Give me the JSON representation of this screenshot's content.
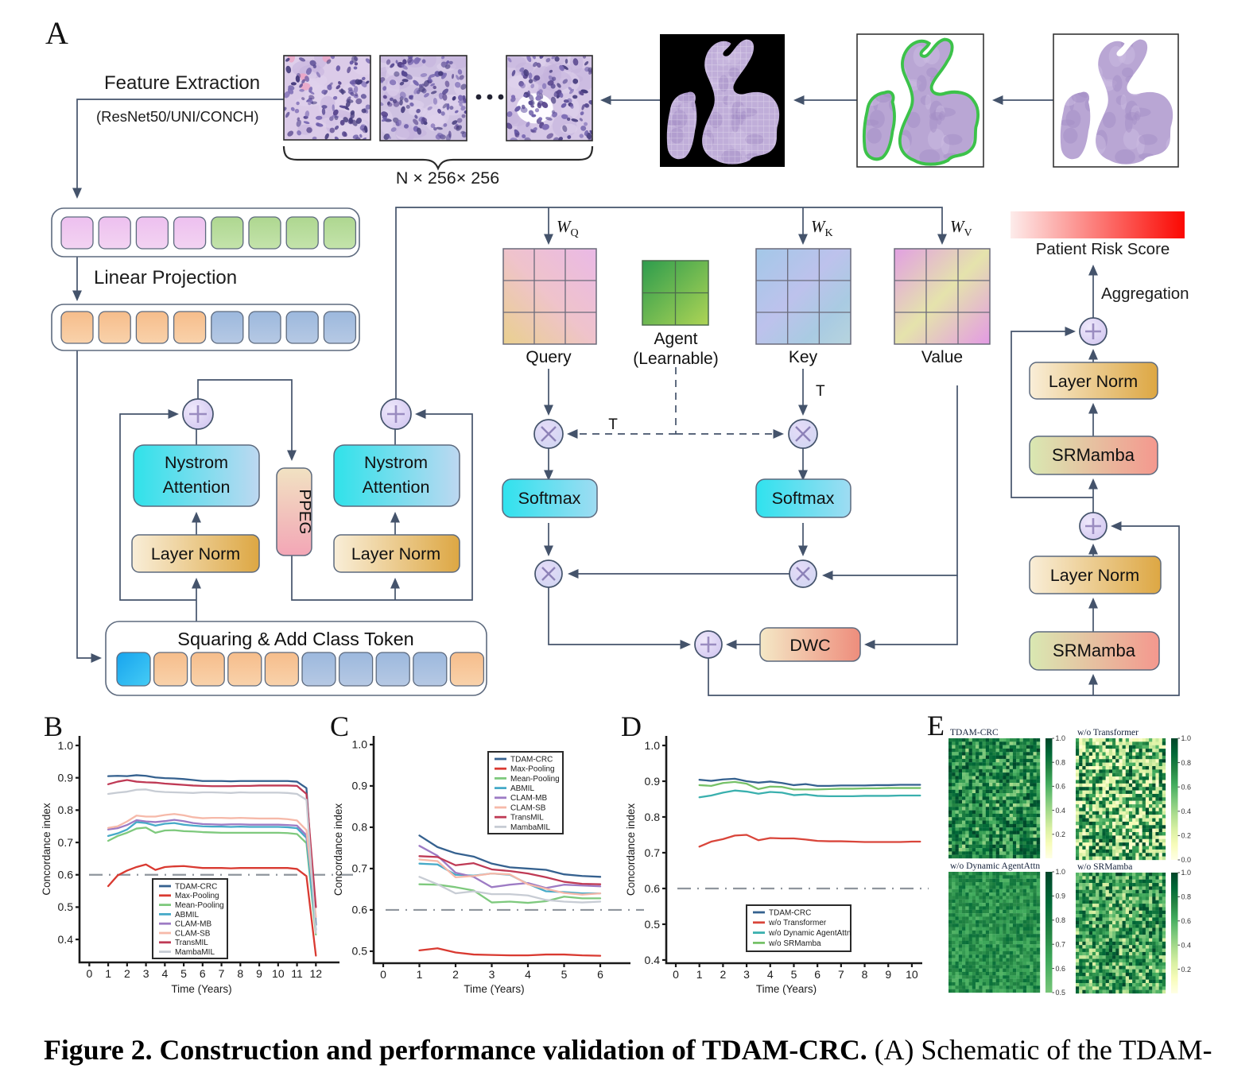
{
  "panel_labels": {
    "a": "A",
    "b": "B",
    "c": "C",
    "d": "D",
    "e": "E"
  },
  "panel_a": {
    "feature_extraction": "Feature Extraction",
    "backbones": "(ResNet50/UNI/CONCH)",
    "patch_count": "N × 256× 256",
    "linear_projection": "Linear Projection",
    "squaring_title": "Squaring & Add Class Token",
    "nystrom_line1": "Nystrom",
    "nystrom_line2": "Attention",
    "layer_norm": "Layer Norm",
    "ppeg": "PPEG",
    "wq": {
      "base": "W",
      "sub": "Q"
    },
    "wk": {
      "base": "W",
      "sub": "K"
    },
    "wv": {
      "base": "W",
      "sub": "V"
    },
    "query": "Query",
    "agent_line1": "Agent",
    "agent_line2": "(Learnable)",
    "key": "Key",
    "value": "Value",
    "softmax": "Softmax",
    "t_left": "T",
    "t_right": "T",
    "dwc": "DWC",
    "srmamba": "SRMamba",
    "aggregation": "Aggregation",
    "patient_risk_score": "Patient Risk Score"
  },
  "chart_data": [
    {
      "id": "B",
      "type": "line",
      "title": "",
      "xlabel": "Time (Years)",
      "ylabel": "Concordance index",
      "xticks": [
        0,
        1,
        2,
        3,
        4,
        5,
        6,
        7,
        8,
        9,
        10,
        11,
        12
      ],
      "yticks": [
        0.4,
        0.5,
        0.6,
        0.7,
        0.8,
        0.9,
        1.0
      ],
      "xlim": [
        -0.52,
        13.25
      ],
      "ylim": [
        0.329,
        1.0295
      ],
      "dashed_y": 0.6,
      "grid": false,
      "legend_position": "lower-center",
      "x": [
        1,
        1.5,
        2,
        2.5,
        3,
        3.5,
        4,
        4.5,
        5,
        5.5,
        6,
        6.5,
        7,
        7.5,
        8,
        8.5,
        9,
        9.5,
        10,
        10.5,
        11,
        11.5,
        12
      ],
      "series": [
        {
          "name": "TDAM-CRC",
          "color": "#35618f",
          "values": [
            0.905,
            0.906,
            0.905,
            0.908,
            0.906,
            0.901,
            0.899,
            0.898,
            0.896,
            0.893,
            0.89,
            0.89,
            0.89,
            0.889,
            0.89,
            0.89,
            0.89,
            0.89,
            0.89,
            0.89,
            0.888,
            0.868,
            0.445
          ]
        },
        {
          "name": "Max-Pooling",
          "color": "#d93a31",
          "values": [
            0.565,
            0.598,
            0.613,
            0.624,
            0.632,
            0.615,
            0.624,
            0.626,
            0.627,
            0.624,
            0.621,
            0.621,
            0.621,
            0.62,
            0.621,
            0.621,
            0.621,
            0.621,
            0.621,
            0.621,
            0.618,
            0.596,
            0.35
          ]
        },
        {
          "name": "Mean-Pooling",
          "color": "#7ec97d",
          "values": [
            0.705,
            0.72,
            0.73,
            0.743,
            0.746,
            0.73,
            0.737,
            0.738,
            0.735,
            0.734,
            0.732,
            0.731,
            0.73,
            0.73,
            0.73,
            0.73,
            0.73,
            0.73,
            0.73,
            0.729,
            0.726,
            0.698,
            0.415
          ]
        },
        {
          "name": "ABMIL",
          "color": "#46aac8",
          "values": [
            0.72,
            0.728,
            0.74,
            0.763,
            0.76,
            0.752,
            0.758,
            0.76,
            0.755,
            0.752,
            0.75,
            0.749,
            0.749,
            0.748,
            0.749,
            0.748,
            0.748,
            0.748,
            0.748,
            0.747,
            0.744,
            0.714,
            0.43
          ]
        },
        {
          "name": "CLAM-MB",
          "color": "#9d7bc4",
          "values": [
            0.74,
            0.744,
            0.754,
            0.769,
            0.765,
            0.763,
            0.766,
            0.77,
            0.766,
            0.76,
            0.757,
            0.756,
            0.755,
            0.756,
            0.756,
            0.755,
            0.755,
            0.755,
            0.755,
            0.754,
            0.752,
            0.722,
            0.5
          ]
        },
        {
          "name": "CLAM-SB",
          "color": "#f6b9a9",
          "values": [
            0.745,
            0.75,
            0.765,
            0.783,
            0.78,
            0.78,
            0.785,
            0.788,
            0.784,
            0.778,
            0.775,
            0.776,
            0.776,
            0.775,
            0.776,
            0.775,
            0.774,
            0.774,
            0.774,
            0.772,
            0.768,
            0.738,
            0.47
          ]
        },
        {
          "name": "TransMIL",
          "color": "#bf3a55",
          "values": [
            0.88,
            0.888,
            0.893,
            0.888,
            0.886,
            0.885,
            0.882,
            0.88,
            0.878,
            0.876,
            0.875,
            0.874,
            0.874,
            0.874,
            0.875,
            0.875,
            0.876,
            0.876,
            0.876,
            0.876,
            0.875,
            0.85,
            0.5
          ]
        },
        {
          "name": "MambaMIL",
          "color": "#c7ccd4",
          "values": [
            0.85,
            0.854,
            0.857,
            0.863,
            0.864,
            0.858,
            0.856,
            0.855,
            0.854,
            0.853,
            0.855,
            0.855,
            0.854,
            0.853,
            0.855,
            0.854,
            0.854,
            0.854,
            0.854,
            0.853,
            0.85,
            0.832,
            0.42
          ]
        }
      ]
    },
    {
      "id": "C",
      "type": "line",
      "title": "",
      "xlabel": "Time (Years)",
      "ylabel": "Concordance index",
      "xticks": [
        0,
        1,
        2,
        3,
        4,
        5,
        6
      ],
      "yticks": [
        0.5,
        0.6,
        0.7,
        0.8,
        0.9,
        1.0
      ],
      "xlim": [
        -0.264,
        6.835
      ],
      "ylim": [
        0.471,
        1.021
      ],
      "dashed_y": 0.6,
      "grid": false,
      "legend_position": "upper-right",
      "x": [
        1,
        1.5,
        2,
        2.5,
        3,
        3.5,
        4,
        4.5,
        5,
        5.5,
        6
      ],
      "series": [
        {
          "name": "TDAM-CRC",
          "color": "#35618f",
          "values": [
            0.78,
            0.752,
            0.737,
            0.729,
            0.712,
            0.703,
            0.7,
            0.697,
            0.686,
            0.682,
            0.68
          ]
        },
        {
          "name": "Max-Pooling",
          "color": "#d93a31",
          "values": [
            0.502,
            0.507,
            0.497,
            0.492,
            0.491,
            0.49,
            0.49,
            0.492,
            0.492,
            0.49,
            0.489
          ]
        },
        {
          "name": "Mean-Pooling",
          "color": "#7ec97d",
          "values": [
            0.662,
            0.661,
            0.655,
            0.647,
            0.618,
            0.62,
            0.617,
            0.621,
            0.632,
            0.628,
            0.628
          ]
        },
        {
          "name": "ABMIL",
          "color": "#46aac8",
          "values": [
            0.712,
            0.71,
            0.685,
            0.683,
            0.688,
            0.685,
            0.663,
            0.645,
            0.643,
            0.64,
            0.64
          ]
        },
        {
          "name": "CLAM-MB",
          "color": "#9d7bc4",
          "values": [
            0.755,
            0.731,
            0.69,
            0.68,
            0.655,
            0.661,
            0.665,
            0.653,
            0.661,
            0.659,
            0.657
          ]
        },
        {
          "name": "CLAM-SB",
          "color": "#f6b9a9",
          "values": [
            0.722,
            0.718,
            0.679,
            0.682,
            0.688,
            0.686,
            0.662,
            0.651,
            0.641,
            0.637,
            0.64
          ]
        },
        {
          "name": "TransMIL",
          "color": "#bf3a55",
          "values": [
            0.73,
            0.728,
            0.708,
            0.713,
            0.698,
            0.694,
            0.688,
            0.679,
            0.668,
            0.663,
            0.662
          ]
        },
        {
          "name": "MambaMIL",
          "color": "#c7ccd4",
          "values": [
            0.68,
            0.662,
            0.64,
            0.645,
            0.638,
            0.638,
            0.635,
            0.624,
            0.62,
            0.618,
            0.62
          ]
        }
      ]
    },
    {
      "id": "D",
      "type": "line",
      "title": "",
      "xlabel": "Time (Years)",
      "ylabel": "Concordance index",
      "xticks": [
        0,
        1,
        2,
        3,
        4,
        5,
        6,
        7,
        8,
        9,
        10
      ],
      "yticks": [
        0.4,
        0.5,
        0.6,
        0.7,
        0.8,
        0.9,
        1.0
      ],
      "xlim": [
        -0.404,
        10.44
      ],
      "ylim": [
        0.391,
        1.0267
      ],
      "dashed_y": 0.6,
      "grid": false,
      "legend_position": "lower-center",
      "x": [
        1,
        1.5,
        2,
        2.5,
        3,
        3.5,
        4,
        4.5,
        5,
        5.5,
        6,
        6.5,
        7,
        7.5,
        8,
        8.5,
        9,
        9.5,
        10,
        10.35
      ],
      "series": [
        {
          "name": "TDAM-CRC",
          "color": "#35618f",
          "values": [
            0.904,
            0.901,
            0.905,
            0.907,
            0.9,
            0.896,
            0.899,
            0.895,
            0.889,
            0.892,
            0.887,
            0.887,
            0.888,
            0.888,
            0.888,
            0.889,
            0.889,
            0.89,
            0.89,
            0.89
          ]
        },
        {
          "name": "w/o Transformer",
          "color": "#d9453a",
          "values": [
            0.717,
            0.731,
            0.738,
            0.748,
            0.75,
            0.735,
            0.741,
            0.74,
            0.74,
            0.737,
            0.733,
            0.732,
            0.732,
            0.731,
            0.73,
            0.73,
            0.73,
            0.73,
            0.731,
            0.731
          ]
        },
        {
          "name": "w/o Dynamic AgentAttn",
          "color": "#3ab0ae",
          "values": [
            0.855,
            0.86,
            0.868,
            0.874,
            0.871,
            0.865,
            0.87,
            0.868,
            0.861,
            0.863,
            0.859,
            0.858,
            0.858,
            0.858,
            0.859,
            0.859,
            0.859,
            0.86,
            0.86,
            0.86
          ]
        },
        {
          "name": "w/o SRMamba",
          "color": "#76c168",
          "values": [
            0.889,
            0.887,
            0.895,
            0.898,
            0.893,
            0.878,
            0.885,
            0.884,
            0.877,
            0.877,
            0.877,
            0.878,
            0.879,
            0.879,
            0.88,
            0.88,
            0.881,
            0.881,
            0.881,
            0.881
          ]
        }
      ]
    },
    {
      "id": "E",
      "type": "heatmap-group",
      "colormap": "YlGn",
      "heatmaps": [
        {
          "title": "TDAM-CRC",
          "rows": 35,
          "cols": 27,
          "range": [
            0,
            1
          ],
          "colorbar_ticks": [
            1.0,
            0.8,
            0.6,
            0.4,
            0.2
          ],
          "distribution": "skew-high",
          "seed": 11
        },
        {
          "title": "w/o Transformer",
          "rows": 35,
          "cols": 27,
          "range": [
            0,
            1
          ],
          "colorbar_ticks": [
            1.0,
            0.8,
            0.6,
            0.4,
            0.2,
            0.0
          ],
          "distribution": "bimodal-strong",
          "seed": 22
        },
        {
          "title": "w/o Dynamic AgentAttn",
          "rows": 35,
          "cols": 27,
          "range": [
            0.5,
            1
          ],
          "colorbar_ticks": [
            1.0,
            0.9,
            0.8,
            0.7,
            0.6,
            0.5
          ],
          "distribution": "uniform-high",
          "seed": 33
        },
        {
          "title": "w/o SRMamba",
          "rows": 35,
          "cols": 27,
          "range": [
            0,
            1
          ],
          "colorbar_ticks": [
            1.0,
            0.8,
            0.6,
            0.4,
            0.2
          ],
          "distribution": "bimodal-mild",
          "seed": 44
        }
      ]
    }
  ],
  "caption": {
    "bold": "Figure 2. Construction and performance validation of TDAM-CRC.",
    "regular": " (A) Schematic of the TDAM-"
  }
}
